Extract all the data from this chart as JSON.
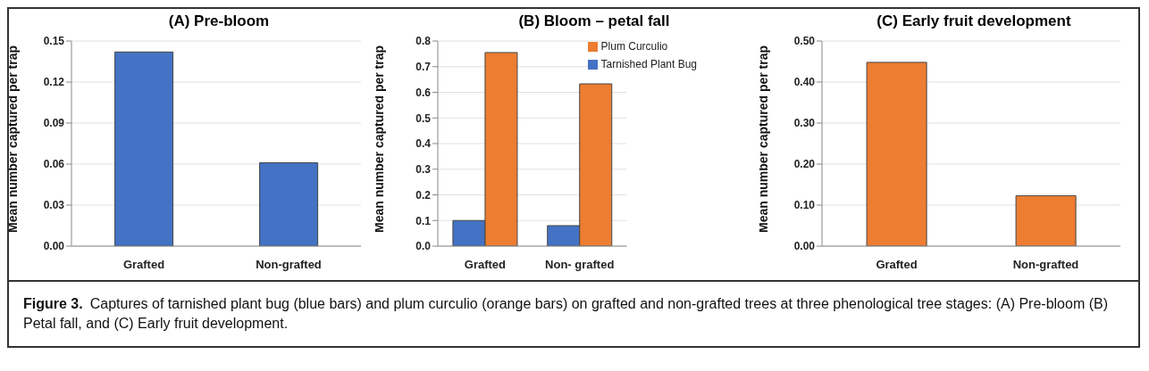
{
  "chart_data": [
    {
      "type": "bar",
      "title": "(A) Pre-bloom",
      "ylabel": "Mean number captured per trap",
      "categories": [
        "Grafted",
        "Non-grafted"
      ],
      "series": [
        {
          "color": "#4472c4",
          "values": [
            0.142,
            0.061
          ]
        }
      ],
      "ylim": [
        0,
        0.15
      ],
      "yticks": [
        {
          "value": 0,
          "label": "0.00"
        },
        {
          "value": 0.03,
          "label": "0.03"
        },
        {
          "value": 0.06,
          "label": "0.06"
        },
        {
          "value": 0.09,
          "label": "0.09"
        },
        {
          "value": 0.12,
          "label": "0.12"
        },
        {
          "value": 0.15,
          "label": "0.15"
        }
      ],
      "grid": "y",
      "legend": false
    },
    {
      "type": "bar",
      "title": "(B) Bloom – petal fall",
      "ylabel": "Mean number captured per trap",
      "categories": [
        "Grafted",
        "Non- grafted"
      ],
      "series": [
        {
          "name": "Tarnished Plant Bug",
          "color": "#4472c4",
          "values": [
            0.1,
            0.08
          ]
        },
        {
          "name": "Plum Curculio",
          "color": "#ed7d31",
          "values": [
            0.755,
            0.633
          ]
        }
      ],
      "ylim": [
        0,
        0.8
      ],
      "yticks": [
        {
          "value": 0,
          "label": "0.0"
        },
        {
          "value": 0.1,
          "label": "0.1"
        },
        {
          "value": 0.2,
          "label": "0.2"
        },
        {
          "value": 0.3,
          "label": "0.3"
        },
        {
          "value": 0.4,
          "label": "0.4"
        },
        {
          "value": 0.5,
          "label": "0.5"
        },
        {
          "value": 0.6,
          "label": "0.6"
        },
        {
          "value": 0.7,
          "label": "0.7"
        },
        {
          "value": 0.8,
          "label": "0.8"
        }
      ],
      "grid": "y",
      "legend": "top right"
    },
    {
      "type": "bar",
      "title": "(C) Early fruit development",
      "ylabel": "Mean number captured per trap",
      "categories": [
        "Grafted",
        "Non-grafted"
      ],
      "series": [
        {
          "color": "#ed7d31",
          "values": [
            0.448,
            0.123
          ]
        }
      ],
      "ylim": [
        0,
        0.5
      ],
      "yticks": [
        {
          "value": 0,
          "label": "0.00"
        },
        {
          "value": 0.1,
          "label": "0.10"
        },
        {
          "value": 0.2,
          "label": "0.20"
        },
        {
          "value": 0.3,
          "label": "0.30"
        },
        {
          "value": 0.4,
          "label": "0.40"
        },
        {
          "value": 0.5,
          "label": "0.50"
        }
      ],
      "grid": "y",
      "legend": false
    },
    {
      "type": "other",
      "annotations": [
        "Figure 3.",
        "Captures of tarnished plant bug  (blue bars) and plum curculio (orange bars) on grafted and non-grafted trees at three phenological tree stages: (A) Pre-bloom (B) Petal fall, and (C) Early fruit development."
      ]
    }
  ]
}
